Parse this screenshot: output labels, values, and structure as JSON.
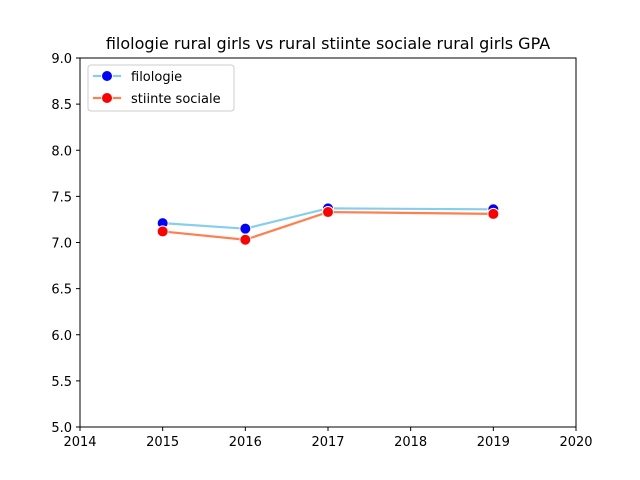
{
  "chart_data": {
    "type": "line",
    "title": "filologie rural girls vs rural stiinte sociale rural girls GPA",
    "xlabel": "",
    "ylabel": "",
    "x": [
      2015,
      2016,
      2017,
      2019
    ],
    "xlim": [
      2014,
      2020
    ],
    "ylim": [
      5.0,
      9.0
    ],
    "xticks": [
      "2014",
      "2015",
      "2016",
      "2017",
      "2018",
      "2019",
      "2020"
    ],
    "yticks": [
      "5.0",
      "5.5",
      "6.0",
      "6.5",
      "7.0",
      "7.5",
      "8.0",
      "8.5",
      "9.0"
    ],
    "grid": false,
    "legend_position": "top-left",
    "series": [
      {
        "name": "filologie",
        "values": [
          7.21,
          7.15,
          7.37,
          7.36
        ],
        "line_color": "#87ceeb",
        "marker_color": "#0000ff"
      },
      {
        "name": "stiinte sociale",
        "values": [
          7.12,
          7.03,
          7.33,
          7.31
        ],
        "line_color": "#ff7f50",
        "marker_color": "#ff0000"
      }
    ]
  }
}
